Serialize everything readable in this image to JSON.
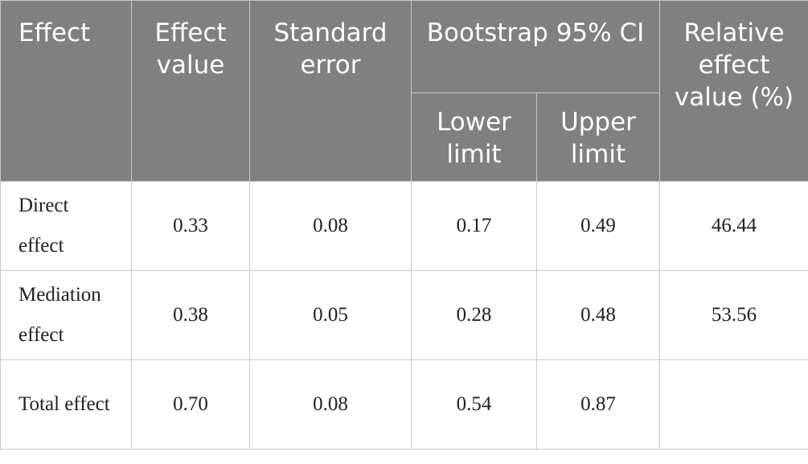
{
  "table": {
    "header": {
      "effect": "Effect",
      "effect_value": "Effect value",
      "standard_error": "Standard error",
      "ci": "Bootstrap 95% CI",
      "lower": "Lower limit",
      "upper": "Upper limit",
      "relative": "Relative effect value (%)"
    },
    "rows": [
      [
        "Direct effect",
        "0.33",
        "0.08",
        "0.17",
        "0.49",
        "46.44"
      ],
      [
        "Mediation effect",
        "0.38",
        "0.05",
        "0.28",
        "0.48",
        "53.56"
      ],
      [
        "Total effect",
        "0.70",
        "0.08",
        "0.54",
        "0.87"
      ]
    ]
  }
}
